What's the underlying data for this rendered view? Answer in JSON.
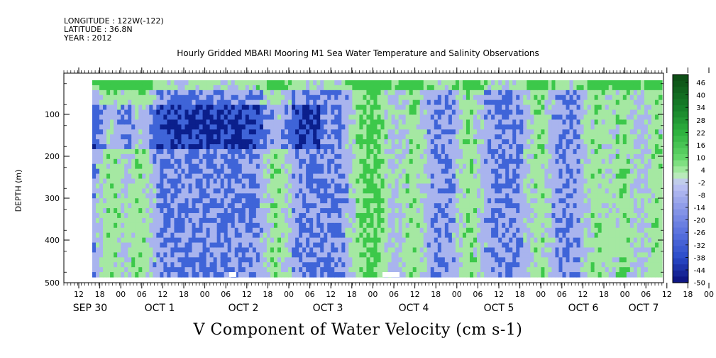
{
  "meta": {
    "longitude": "LONGITUDE : 122W(-122)",
    "latitude": "LATITUDE : 36.8N",
    "year": "YEAR : 2012"
  },
  "chart_data": {
    "type": "heatmap",
    "title": "Hourly Gridded MBARI Mooring M1 Sea Water Temperature and Salinity Observations",
    "xlabel": "V Component of Water Velocity (cm s-1)",
    "ylabel": "DEPTH (m)",
    "ylim": [
      500,
      0
    ],
    "y_ticks": [
      100,
      200,
      300,
      400,
      500
    ],
    "x_hour_ticks": [
      "12",
      "18",
      "00",
      "06",
      "12",
      "18",
      "00",
      "06",
      "12",
      "18",
      "00",
      "06",
      "12",
      "18",
      "00",
      "06",
      "12",
      "18",
      "00",
      "06",
      "12",
      "18",
      "00",
      "06",
      "12",
      "18",
      "00",
      "06",
      "12",
      "18",
      "00",
      "06"
    ],
    "x_date_labels": [
      "SEP 30",
      "OCT  1",
      "OCT  2",
      "OCT  3",
      "OCT  4",
      "OCT  5",
      "OCT  6",
      "OCT  7"
    ],
    "colorbar_labels": [
      "46",
      "40",
      "34",
      "28",
      "22",
      "16",
      "10",
      "4",
      "-2",
      "-8",
      "-14",
      "-20",
      "-26",
      "-32",
      "-38",
      "-44",
      "-50"
    ],
    "colorbar_range": [
      -50,
      50
    ],
    "colors": {
      "negative_strong": "#0b1f8c",
      "negative_mid": "#3f64d8",
      "negative_weak": "#a9b4ee",
      "positive_weak": "#a5e8a2",
      "positive_mid": "#3cc84a",
      "positive_strong": "#0c5a18"
    }
  }
}
